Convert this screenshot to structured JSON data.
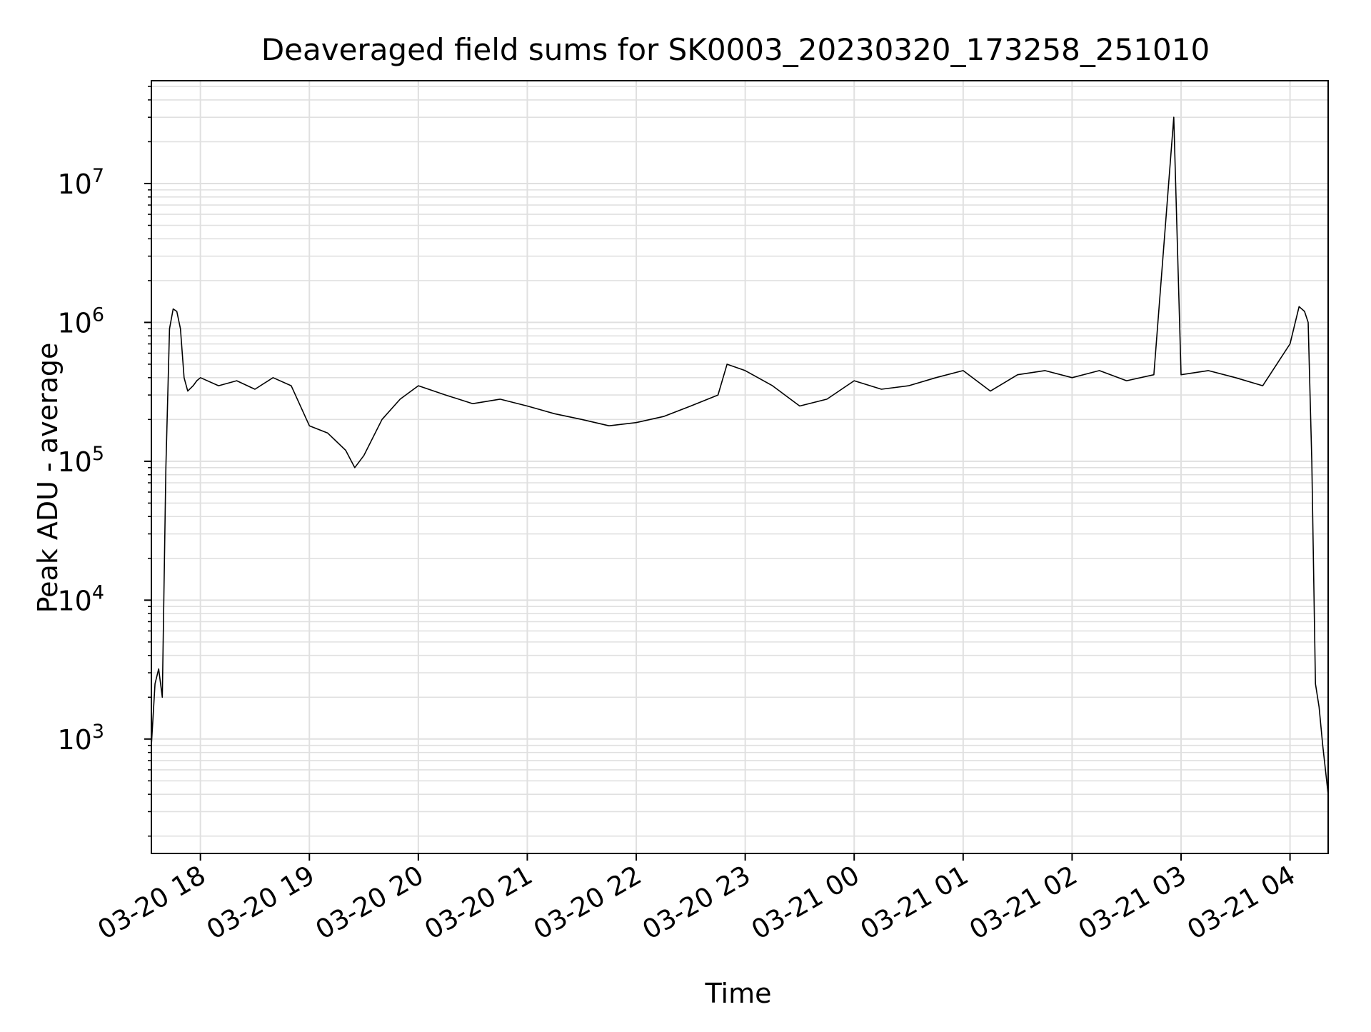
{
  "chart_data": {
    "type": "line",
    "title": "Deaveraged field sums for SK0003_20230320_173258_251010",
    "xlabel": "Time",
    "ylabel": "Peak ADU - average",
    "yscale": "log",
    "xlim": [
      "2023-03-20 17:33",
      "2023-03-21 04:21"
    ],
    "ylim": [
      150,
      55000000
    ],
    "grid": "on (major and minor)",
    "line_color": "#000000",
    "grid_color": "#e0e0e0",
    "x_tick_labels": [
      "03-20 18",
      "03-20 19",
      "03-20 20",
      "03-20 21",
      "03-20 22",
      "03-20 23",
      "03-21 00",
      "03-21 01",
      "03-21 02",
      "03-21 03",
      "03-21 04"
    ],
    "x_tick_values": [
      "2023-03-20 18:00",
      "2023-03-20 19:00",
      "2023-03-20 20:00",
      "2023-03-20 21:00",
      "2023-03-20 22:00",
      "2023-03-20 23:00",
      "2023-03-21 00:00",
      "2023-03-21 01:00",
      "2023-03-21 02:00",
      "2023-03-21 03:00",
      "2023-03-21 04:00"
    ],
    "y_ticks": [
      {
        "value": 1000,
        "mantissa": "10",
        "exponent": "3"
      },
      {
        "value": 10000,
        "mantissa": "10",
        "exponent": "4"
      },
      {
        "value": 100000,
        "mantissa": "10",
        "exponent": "5"
      },
      {
        "value": 1000000,
        "mantissa": "10",
        "exponent": "6"
      },
      {
        "value": 10000000,
        "mantissa": "10",
        "exponent": "7"
      }
    ],
    "series": [
      {
        "x": [
          "2023-03-20 17:33",
          "2023-03-20 17:35",
          "2023-03-20 17:37",
          "2023-03-20 17:39",
          "2023-03-20 17:41",
          "2023-03-20 17:43",
          "2023-03-20 17:45",
          "2023-03-20 17:47",
          "2023-03-20 17:49",
          "2023-03-20 17:51",
          "2023-03-20 17:53",
          "2023-03-20 17:56",
          "2023-03-20 17:58",
          "2023-03-20 18:00",
          "2023-03-20 18:10",
          "2023-03-20 18:20",
          "2023-03-20 18:30",
          "2023-03-20 18:40",
          "2023-03-20 18:50",
          "2023-03-20 19:00",
          "2023-03-20 19:10",
          "2023-03-20 19:20",
          "2023-03-20 19:25",
          "2023-03-20 19:30",
          "2023-03-20 19:40",
          "2023-03-20 19:50",
          "2023-03-20 20:00",
          "2023-03-20 20:15",
          "2023-03-20 20:30",
          "2023-03-20 20:45",
          "2023-03-20 21:00",
          "2023-03-20 21:15",
          "2023-03-20 21:30",
          "2023-03-20 21:45",
          "2023-03-20 22:00",
          "2023-03-20 22:15",
          "2023-03-20 22:30",
          "2023-03-20 22:45",
          "2023-03-20 22:50",
          "2023-03-20 23:00",
          "2023-03-20 23:15",
          "2023-03-20 23:30",
          "2023-03-20 23:45",
          "2023-03-21 00:00",
          "2023-03-21 00:15",
          "2023-03-21 00:30",
          "2023-03-21 00:45",
          "2023-03-21 01:00",
          "2023-03-21 01:15",
          "2023-03-21 01:30",
          "2023-03-21 01:45",
          "2023-03-21 02:00",
          "2023-03-21 02:15",
          "2023-03-21 02:30",
          "2023-03-21 02:45",
          "2023-03-21 02:56",
          "2023-03-21 03:00",
          "2023-03-21 03:15",
          "2023-03-21 03:30",
          "2023-03-21 03:45",
          "2023-03-21 04:00",
          "2023-03-21 04:05",
          "2023-03-21 04:08",
          "2023-03-21 04:10",
          "2023-03-21 04:12",
          "2023-03-21 04:14",
          "2023-03-21 04:16",
          "2023-03-21 04:18",
          "2023-03-21 04:21"
        ],
        "y": [
          900,
          2500,
          3200,
          2000,
          90000,
          900000,
          1250000,
          1200000,
          900000,
          400000,
          320000,
          350000,
          380000,
          400000,
          350000,
          380000,
          330000,
          400000,
          350000,
          180000,
          160000,
          120000,
          90000,
          110000,
          200000,
          280000,
          350000,
          300000,
          260000,
          280000,
          250000,
          220000,
          200000,
          180000,
          190000,
          210000,
          250000,
          300000,
          500000,
          450000,
          350000,
          250000,
          280000,
          380000,
          330000,
          350000,
          400000,
          450000,
          320000,
          420000,
          450000,
          400000,
          450000,
          380000,
          420000,
          30000000,
          420000,
          450000,
          400000,
          350000,
          700000,
          1300000,
          1200000,
          1000000,
          100000,
          2500,
          1700,
          900,
          400
        ]
      }
    ]
  }
}
